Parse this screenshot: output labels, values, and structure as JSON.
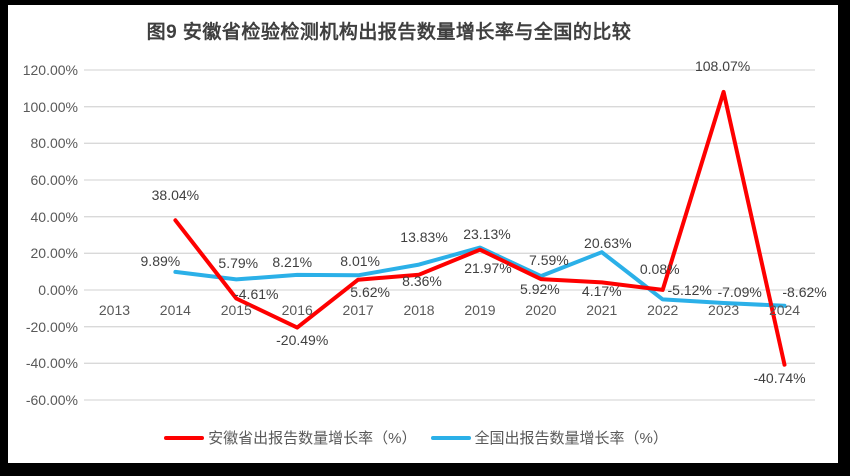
{
  "title": "图9 安徽省检验检测机构出报告数量增长率与全国的比较",
  "colors": {
    "anhui_red": "#fe0000",
    "national_blue": "#2bb0e8",
    "gridline": "#d9d9d9",
    "axis_text": "#595959",
    "data_label_text": "#404040",
    "frame": "#000000",
    "chart_background": "#ffffff"
  },
  "chart_data": {
    "type": "line",
    "title": "图9 安徽省检验检测机构出报告数量增长率与全国的比较",
    "categories": [
      "2013",
      "2014",
      "2015",
      "2016",
      "2017",
      "2018",
      "2019",
      "2020",
      "2021",
      "2022",
      "2023",
      "2024"
    ],
    "series": [
      {
        "name": "安徽省出报告数量增长率（%）",
        "color": "#fe0000",
        "values": [
          null,
          38.04,
          -4.61,
          -20.49,
          5.62,
          8.36,
          21.97,
          5.92,
          4.17,
          0.08,
          108.07,
          -40.74
        ],
        "data_labels": [
          "",
          "38.04%",
          "-4.61%",
          "-20.49%",
          "5.62%",
          "8.36%",
          "21.97%",
          "5.92%",
          "4.17%",
          "0.08%",
          "108.07%",
          "-40.74%"
        ],
        "label_offsets": [
          [
            0,
            0
          ],
          [
            0,
            -25
          ],
          [
            20,
            -4
          ],
          [
            5,
            12
          ],
          [
            12,
            12
          ],
          [
            3,
            6
          ],
          [
            8,
            18
          ],
          [
            -1,
            10
          ],
          [
            0,
            9
          ],
          [
            -3,
            -21
          ],
          [
            -1,
            -26
          ],
          [
            -5,
            13
          ]
        ]
      },
      {
        "name": "全国出报告数量增长率（%）",
        "color": "#2bb0e8",
        "values": [
          null,
          9.89,
          5.79,
          8.21,
          8.01,
          13.83,
          23.13,
          7.59,
          20.63,
          -5.12,
          -7.09,
          -8.62
        ],
        "data_labels": [
          "",
          "9.89%",
          "5.79%",
          "8.21%",
          "8.01%",
          "13.83%",
          "23.13%",
          "7.59%",
          "20.63%",
          "-5.12%",
          "-7.09%",
          "-8.62%"
        ],
        "label_offsets": [
          [
            0,
            0
          ],
          [
            -15,
            -11
          ],
          [
            2,
            -16
          ],
          [
            -5,
            -13
          ],
          [
            2,
            -14
          ],
          [
            5,
            -28
          ],
          [
            7,
            -14
          ],
          [
            8,
            -16
          ],
          [
            6,
            -9
          ],
          [
            27,
            -9
          ],
          [
            16,
            -11
          ],
          [
            20,
            -14
          ]
        ]
      }
    ],
    "y_axis": {
      "tick_labels": [
        "120.00%",
        "100.00%",
        "80.00%",
        "60.00%",
        "40.00%",
        "20.00%",
        "0.00%",
        "-20.00%",
        "-40.00%",
        "-60.00%"
      ],
      "tick_values": [
        120,
        100,
        80,
        60,
        40,
        20,
        0,
        -20,
        -40,
        -60
      ],
      "min": -60,
      "max": 120
    },
    "grid": true,
    "legend_position": "bottom"
  }
}
